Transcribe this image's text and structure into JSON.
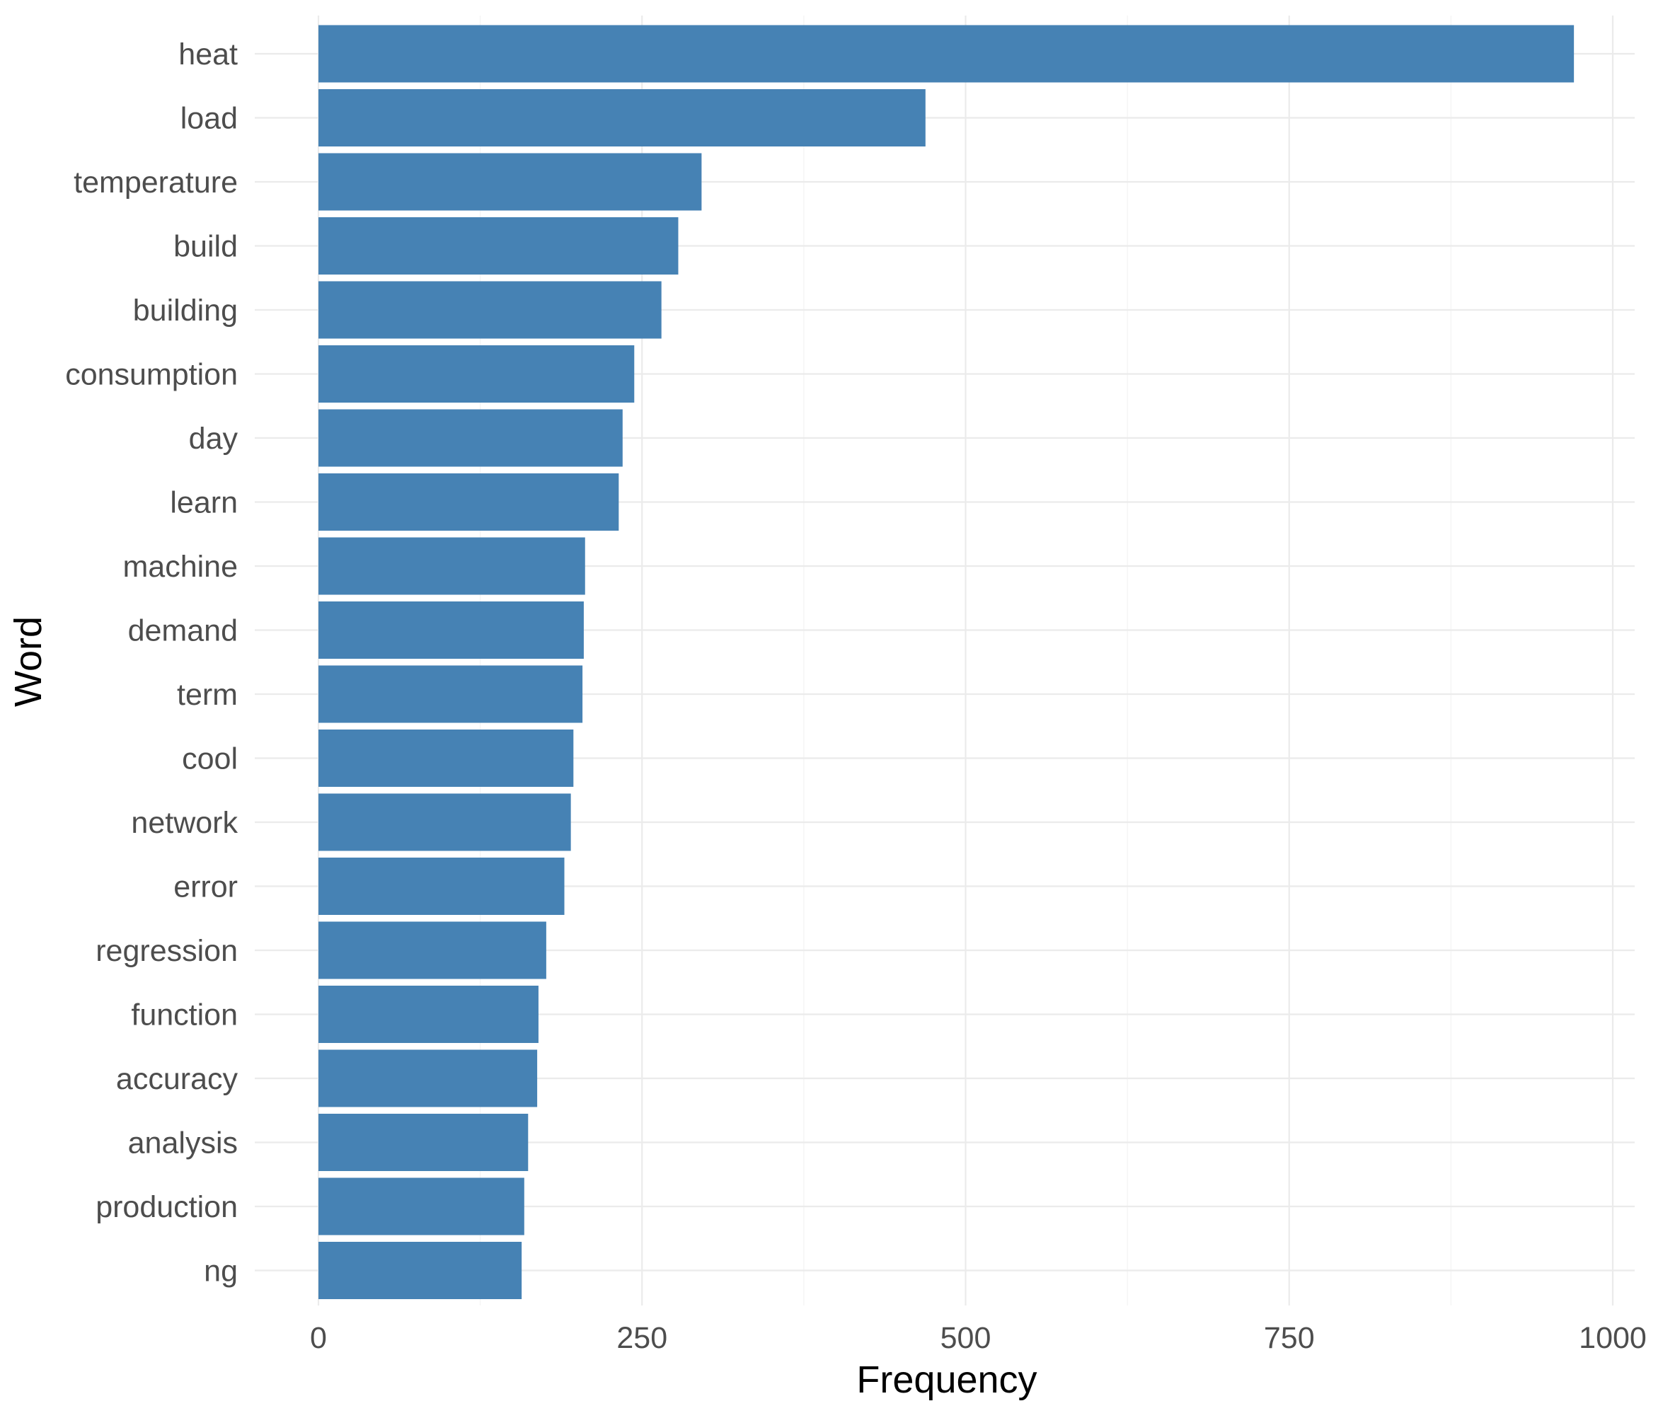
{
  "chart_data": {
    "type": "bar",
    "orientation": "horizontal",
    "title": "",
    "xlabel": "Frequency",
    "ylabel": "Word",
    "xlim": [
      0,
      1000
    ],
    "xticks": [
      0,
      250,
      500,
      750,
      1000
    ],
    "grid": true,
    "bar_color": "#4682b4",
    "categories": [
      "heat",
      "load",
      "temperature",
      "build",
      "building",
      "consumption",
      "day",
      "learn",
      "machine",
      "demand",
      "term",
      "cool",
      "network",
      "error",
      "regression",
      "function",
      "accuracy",
      "analysis",
      "production",
      "ng"
    ],
    "values": [
      970,
      469,
      296,
      278,
      265,
      244,
      235,
      232,
      206,
      205,
      204,
      197,
      195,
      190,
      176,
      170,
      169,
      162,
      159,
      157
    ]
  }
}
